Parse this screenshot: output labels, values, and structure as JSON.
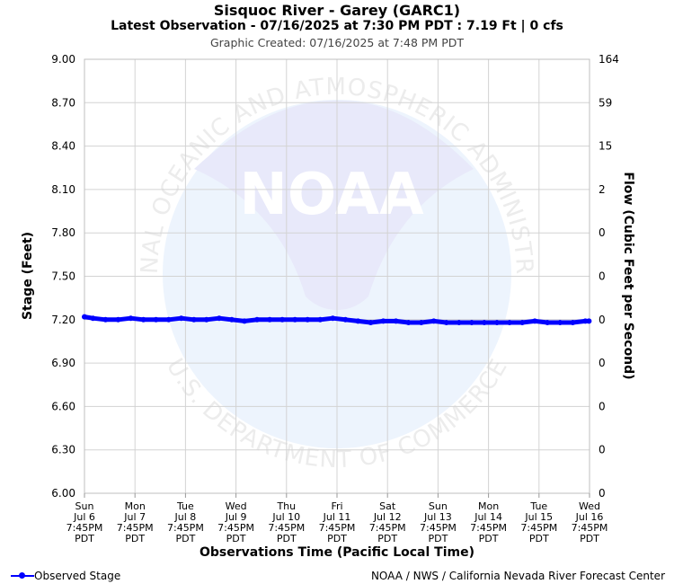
{
  "header": {
    "title": "Sisquoc River - Garey (GARC1)",
    "subtitle": "Latest Observation - 07/16/2025 at 7:30 PM PDT : 7.19 Ft | 0 cfs",
    "created": "Graphic Created: 07/16/2025 at 7:48 PM PDT"
  },
  "footer": {
    "legend_label": "Observed Stage",
    "credit": "NOAA / NWS / California Nevada River Forecast Center"
  },
  "watermark": {
    "logo_text": "NOAA",
    "top_text": "NATIONAL OCEANIC AND ATMOSPHERIC ADMINISTRATION",
    "bottom_text": "U.S. DEPARTMENT OF COMMERCE"
  },
  "chart_data": {
    "type": "line",
    "title": "Sisquoc River - Garey (GARC1)",
    "xlabel": "Observations Time (Pacific Local Time)",
    "ylabel": "Stage (Feet)",
    "ylabel_right": "Flow (Cubic Feet per Second)",
    "ylim": [
      6.0,
      9.0
    ],
    "y_ticks": [
      "9.00",
      "8.70",
      "8.40",
      "8.10",
      "7.80",
      "7.50",
      "7.20",
      "6.90",
      "6.60",
      "6.30",
      "6.00"
    ],
    "y_right_ticks": [
      "164",
      "59",
      "15",
      "2",
      "0",
      "0",
      "0",
      "0",
      "0",
      "0",
      "0"
    ],
    "x_ticks": [
      [
        "Sun",
        "Jul 6",
        "7:45PM",
        "PDT"
      ],
      [
        "Mon",
        "Jul 7",
        "7:45PM",
        "PDT"
      ],
      [
        "Tue",
        "Jul 8",
        "7:45PM",
        "PDT"
      ],
      [
        "Wed",
        "Jul 9",
        "7:45PM",
        "PDT"
      ],
      [
        "Thu",
        "Jul 10",
        "7:45PM",
        "PDT"
      ],
      [
        "Fri",
        "Jul 11",
        "7:45PM",
        "PDT"
      ],
      [
        "Sat",
        "Jul 12",
        "7:45PM",
        "PDT"
      ],
      [
        "Sun",
        "Jul 13",
        "7:45PM",
        "PDT"
      ],
      [
        "Mon",
        "Jul 14",
        "7:45PM",
        "PDT"
      ],
      [
        "Tue",
        "Jul 15",
        "7:45PM",
        "PDT"
      ],
      [
        "Wed",
        "Jul 16",
        "7:45PM",
        "PDT"
      ]
    ],
    "grid": true,
    "series": [
      {
        "name": "Observed Stage",
        "color": "#0000ff",
        "x": [
          "07/06 19:45",
          "07/06 23:45",
          "07/07 05:45",
          "07/07 11:45",
          "07/07 17:45",
          "07/07 23:45",
          "07/08 05:45",
          "07/08 11:45",
          "07/08 17:45",
          "07/08 23:45",
          "07/09 05:45",
          "07/09 11:45",
          "07/09 17:45",
          "07/09 23:45",
          "07/10 05:45",
          "07/10 11:45",
          "07/10 17:45",
          "07/10 23:45",
          "07/11 05:45",
          "07/11 11:45",
          "07/11 17:45",
          "07/11 23:45",
          "07/12 05:45",
          "07/12 11:45",
          "07/12 17:45",
          "07/12 23:45",
          "07/13 05:45",
          "07/13 11:45",
          "07/13 17:45",
          "07/13 23:45",
          "07/14 05:45",
          "07/14 11:45",
          "07/14 17:45",
          "07/14 23:45",
          "07/15 05:45",
          "07/15 11:45",
          "07/15 17:45",
          "07/15 23:45",
          "07/16 05:45",
          "07/16 11:45",
          "07/16 17:45",
          "07/16 19:30"
        ],
        "values": [
          7.22,
          7.21,
          7.2,
          7.2,
          7.21,
          7.2,
          7.2,
          7.2,
          7.21,
          7.2,
          7.2,
          7.21,
          7.2,
          7.19,
          7.2,
          7.2,
          7.2,
          7.2,
          7.2,
          7.2,
          7.21,
          7.2,
          7.19,
          7.18,
          7.19,
          7.19,
          7.18,
          7.18,
          7.19,
          7.18,
          7.18,
          7.18,
          7.18,
          7.18,
          7.18,
          7.18,
          7.19,
          7.18,
          7.18,
          7.18,
          7.19,
          7.19
        ]
      }
    ]
  }
}
